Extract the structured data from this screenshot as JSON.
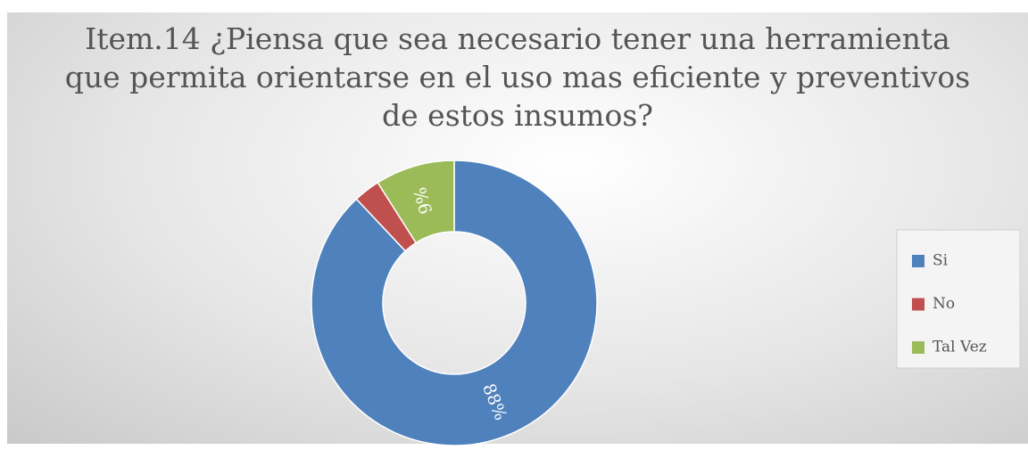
{
  "chart_data": {
    "type": "donut",
    "title": "Item.14 ¿Piensa que sea necesario tener una herramienta  que permita orientarse en el uso  mas eficiente y preventivos de estos insumos?",
    "categories": [
      "Si",
      "No",
      "Tal Vez"
    ],
    "values": [
      88,
      3,
      9
    ],
    "value_labels": [
      "88%",
      null,
      "9%"
    ],
    "colors": [
      "#4f81bd",
      "#c0504d",
      "#9bbb59"
    ],
    "legend": "right"
  }
}
